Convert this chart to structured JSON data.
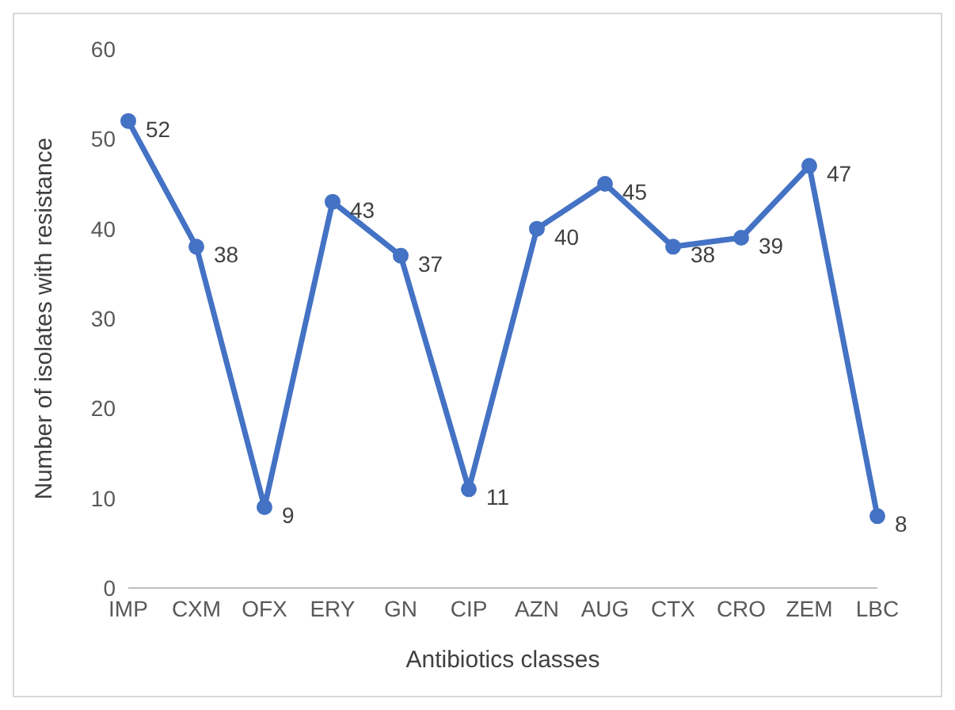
{
  "chart_data": {
    "type": "line",
    "xlabel": "Antibiotics classes",
    "ylabel": "Number of isolates with resistance",
    "categories": [
      "IMP",
      "CXM",
      "OFX",
      "ERY",
      "GN",
      "CIP",
      "AZN",
      "AUG",
      "CTX",
      "CRO",
      "ZEM",
      "LBC"
    ],
    "series": [
      {
        "color": "#4472c4",
        "values": [
          52,
          38,
          9,
          43,
          37,
          11,
          40,
          45,
          38,
          39,
          47,
          8
        ]
      }
    ],
    "ylim": [
      0,
      60
    ],
    "yticks": [
      0,
      10,
      20,
      30,
      40,
      50,
      60
    ],
    "grid": false,
    "legend": false,
    "marker": "circle",
    "line_style": "solid",
    "data_labels": true
  }
}
